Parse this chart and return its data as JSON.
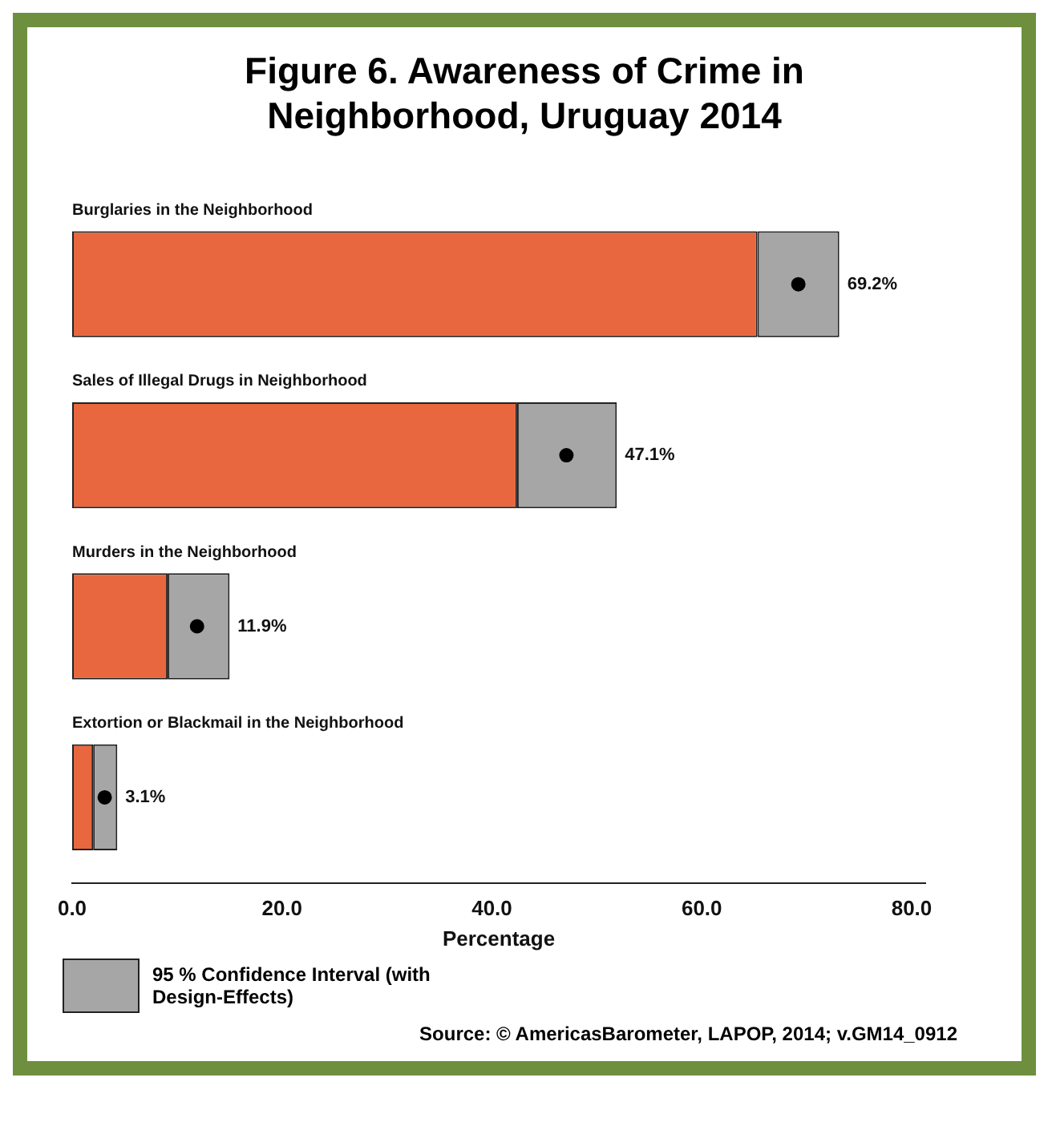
{
  "chart_data": {
    "type": "bar",
    "orientation": "horizontal",
    "stacked": true,
    "title": "Figure 6. Awareness of Crime in Neighborhood, Uruguay 2014",
    "xlabel": "Percentage",
    "categories": [
      "Burglaries in the Neighborhood",
      "Sales of Illegal Drugs in Neighborhood",
      "Murders in the Neighborhood",
      "Extortion or Blackmail in the Neighborhood"
    ],
    "series": [
      {
        "color": "#e8673e",
        "values": [
          65.3,
          42.4,
          9.1,
          2.0
        ]
      },
      {
        "name": "95 % Confidence Interval (with Design-Effects)",
        "color": "#a6a6a6",
        "values": [
          7.8,
          9.5,
          5.9,
          2.3
        ]
      },
      {
        "type": "scatter",
        "color": "#000000",
        "marker": "circle",
        "x": [
          "Burglaries in the Neighborhood",
          "Sales of Illegal Drugs in Neighborhood",
          "Murders in the Neighborhood",
          "Extortion or Blackmail in the Neighborhood"
        ],
        "values": [
          69.2,
          47.1,
          11.9,
          3.1
        ],
        "value_labels": [
          "69.2%",
          "47.1%",
          "11.9%",
          "3.1%"
        ]
      }
    ],
    "xlim": [
      0,
      81.3
    ],
    "xticks": [
      {
        "value": 0,
        "label": "0.0"
      },
      {
        "value": 20,
        "label": "20.0"
      },
      {
        "value": 40,
        "label": "40.0"
      },
      {
        "value": 60,
        "label": "60.0"
      },
      {
        "value": 80,
        "label": "80.0"
      }
    ],
    "grid": false,
    "legend": "bottom left",
    "annotations": [
      "Source: © AmericasBarometer, LAPOP, 2014; v.GM14_0912"
    ]
  }
}
